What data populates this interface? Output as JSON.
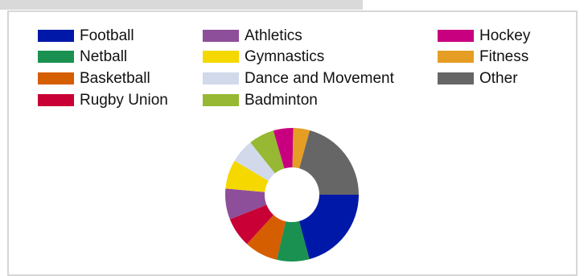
{
  "chart_data": {
    "type": "pie",
    "style": "donut",
    "legend_position": "top",
    "categories": [
      "Football",
      "Netball",
      "Basketball",
      "Rugby Union",
      "Athletics",
      "Gymnastics",
      "Dance and Movement",
      "Badminton",
      "Hockey",
      "Fitness",
      "Other"
    ],
    "values": [
      20.8,
      7.9,
      8.1,
      7.2,
      7.5,
      7.0,
      5.8,
      6.2,
      4.8,
      4.0,
      20.7
    ],
    "colors": [
      "#0018a8",
      "#1a9150",
      "#d55e00",
      "#c90035",
      "#8e4f9a",
      "#f5d800",
      "#d2d9ea",
      "#96b833",
      "#c8007f",
      "#e69d24",
      "#666666"
    ]
  }
}
